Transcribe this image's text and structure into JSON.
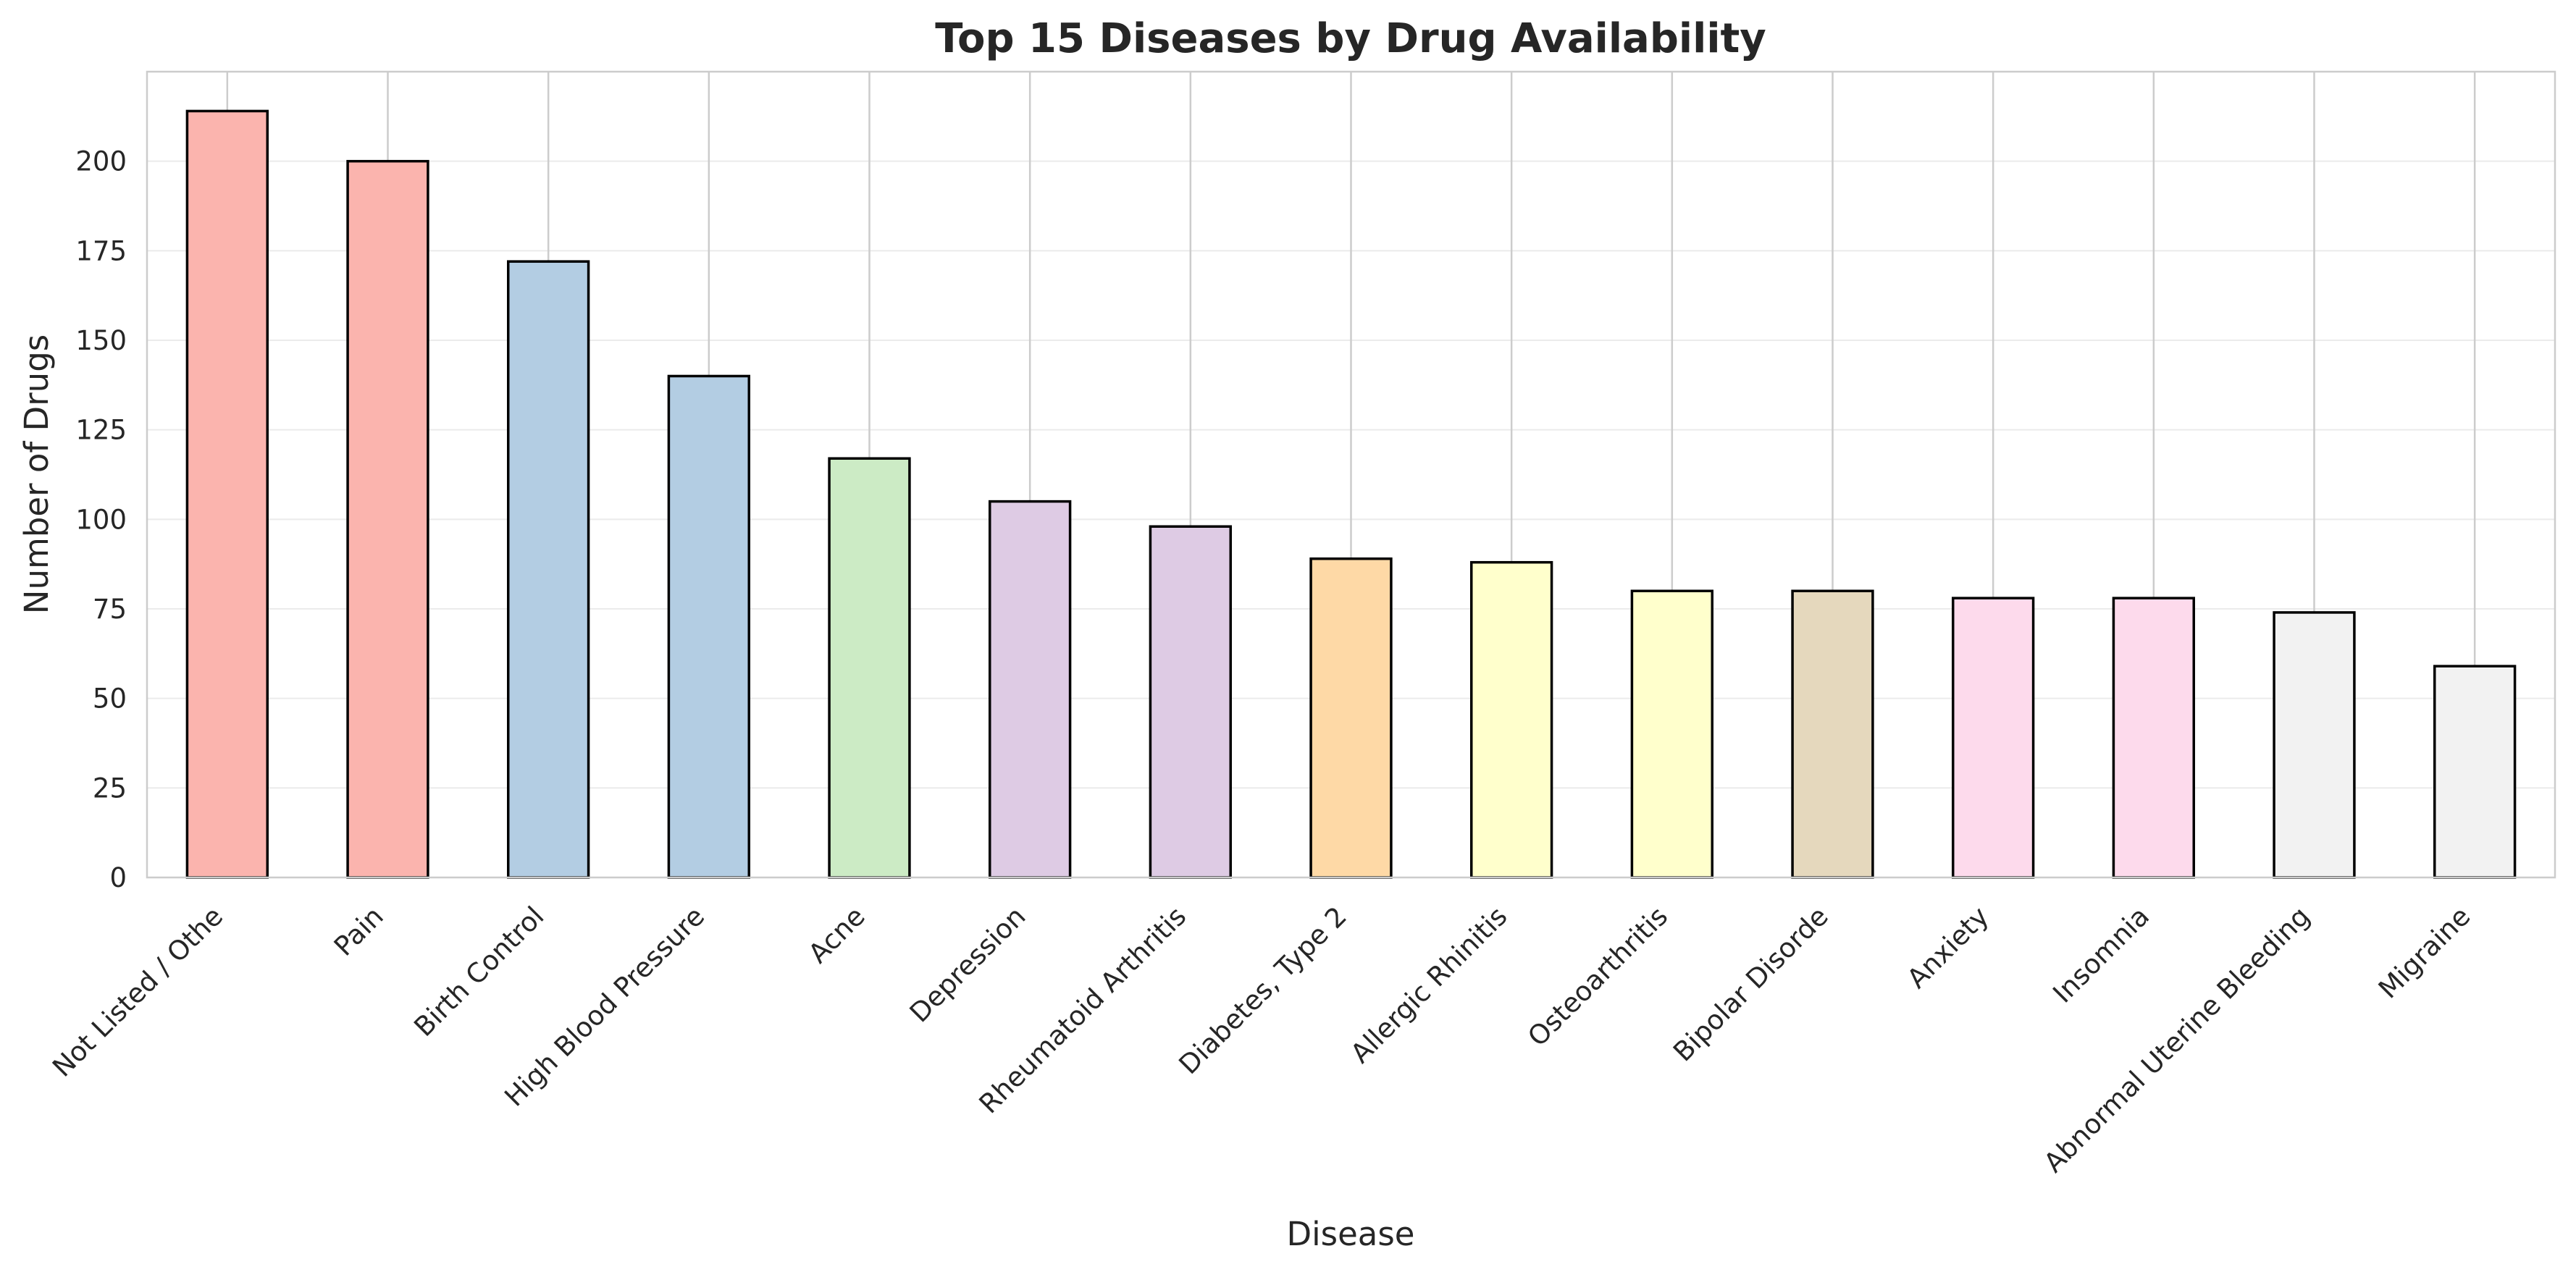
{
  "chart_data": {
    "type": "bar",
    "title": "Top 15 Diseases by Drug Availability",
    "xlabel": "Disease",
    "ylabel": "Number of Drugs",
    "ylim": [
      0,
      225
    ],
    "yticks": [
      0,
      25,
      50,
      75,
      100,
      125,
      150,
      175,
      200
    ],
    "grid": true,
    "legend": "none",
    "categories": [
      "Not Listed / Othe",
      "Pain",
      "Birth Control",
      "High Blood Pressure",
      "Acne",
      "Depression",
      "Rheumatoid Arthritis",
      "Diabetes, Type 2",
      "Allergic Rhinitis",
      "Osteoarthritis",
      "Bipolar Disorde",
      "Anxiety",
      "Insomnia",
      "Abnormal Uterine Bleeding",
      "Migraine"
    ],
    "values": [
      214,
      200,
      172,
      140,
      117,
      105,
      98,
      89,
      88,
      80,
      80,
      78,
      78,
      74,
      59
    ],
    "colors": [
      "#fbb4ae",
      "#fbb4ae",
      "#b3cde3",
      "#b3cde3",
      "#ccebc5",
      "#decbe4",
      "#decbe4",
      "#fed9a6",
      "#ffffcc",
      "#ffffcc",
      "#e5d8bd",
      "#fddaec",
      "#fddaec",
      "#f2f2f2",
      "#f2f2f2"
    ]
  }
}
